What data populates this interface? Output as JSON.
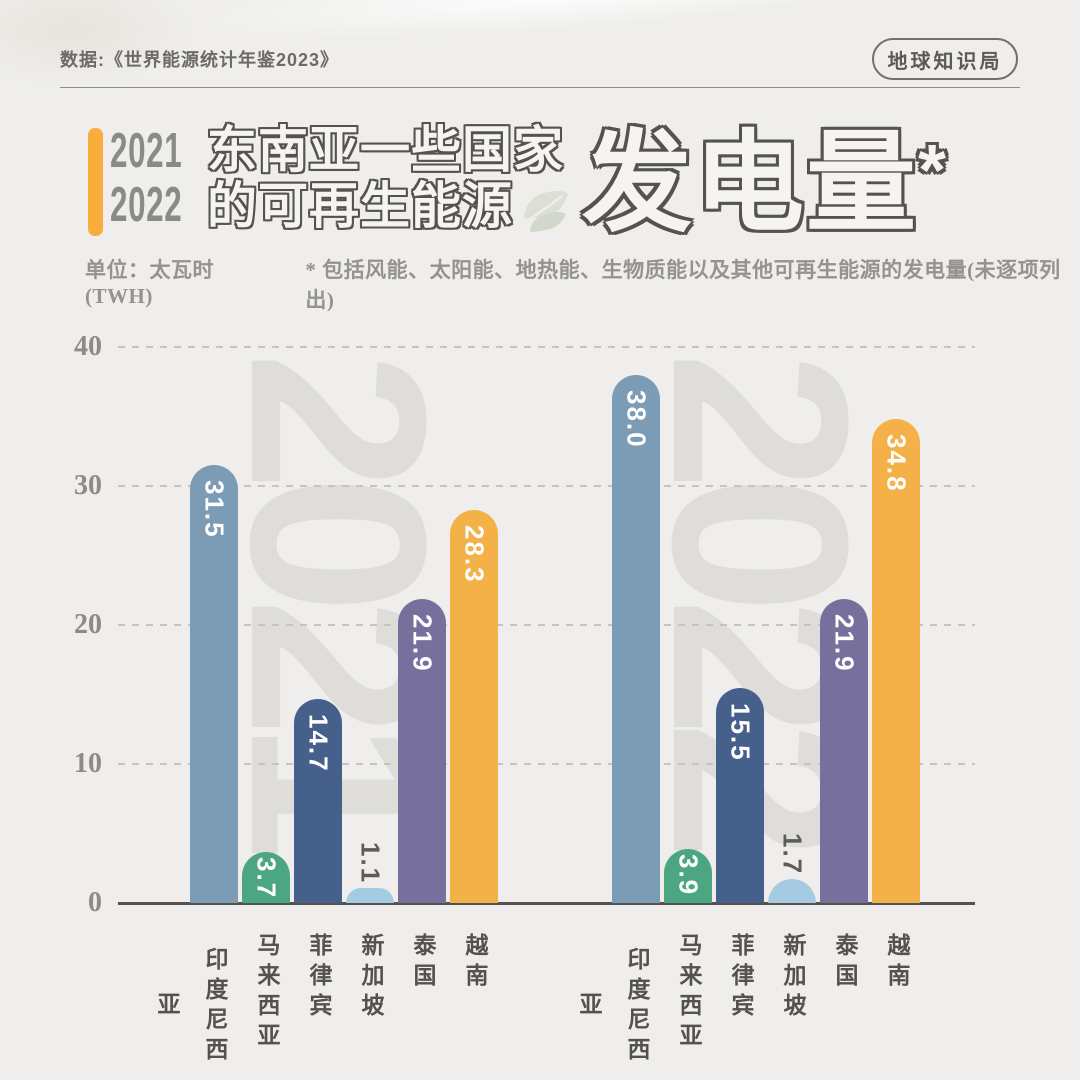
{
  "header": {
    "source": "数据:《世界能源统计年鉴2023》",
    "badge": "地球知识局"
  },
  "title": {
    "years": [
      "2021",
      "2022"
    ],
    "line1": "东南亚一些国家",
    "line2": "的可再生能源",
    "big": "发电量",
    "asterisk": "*"
  },
  "subtitle": {
    "unit": "单位：太瓦时(TWH)",
    "note": "* 包括风能、太阳能、地热能、生物质能以及其他可再生能源的发电量(未逐项列出)"
  },
  "chart_data": {
    "type": "bar",
    "title": "2021/2022 东南亚一些国家的可再生能源发电量",
    "unit": "太瓦时(TWH)",
    "categories": [
      "印度尼西亚",
      "马来西亚",
      "菲律宾",
      "新加坡",
      "泰国",
      "越南"
    ],
    "series": [
      {
        "name": "2021",
        "values": [
          31.5,
          3.7,
          14.7,
          1.1,
          21.9,
          28.3
        ]
      },
      {
        "name": "2022",
        "values": [
          38.0,
          3.9,
          15.5,
          1.7,
          21.9,
          34.8
        ]
      }
    ],
    "bar_colors": [
      "#7C9BB5",
      "#4CA682",
      "#46608C",
      "#A5CBE2",
      "#77709D",
      "#F4B148"
    ],
    "ylim": [
      0,
      40
    ],
    "yticks": [
      0,
      10,
      20,
      30,
      40
    ],
    "grid": "horizontal-dashed",
    "legend_position": "none",
    "watermarks": [
      "2021",
      "2022"
    ],
    "value_label_style": "rotated-90-inside-bar, outside when value < 3"
  },
  "colors": {
    "background": "#EFEEEC",
    "accent_orange": "#F8AD3C",
    "outline_gray": "#55534D",
    "watermark": "#DEDDDA",
    "grid": "#C6C4C0",
    "axis": "#54524E",
    "value_outside": "#5D5B57"
  }
}
